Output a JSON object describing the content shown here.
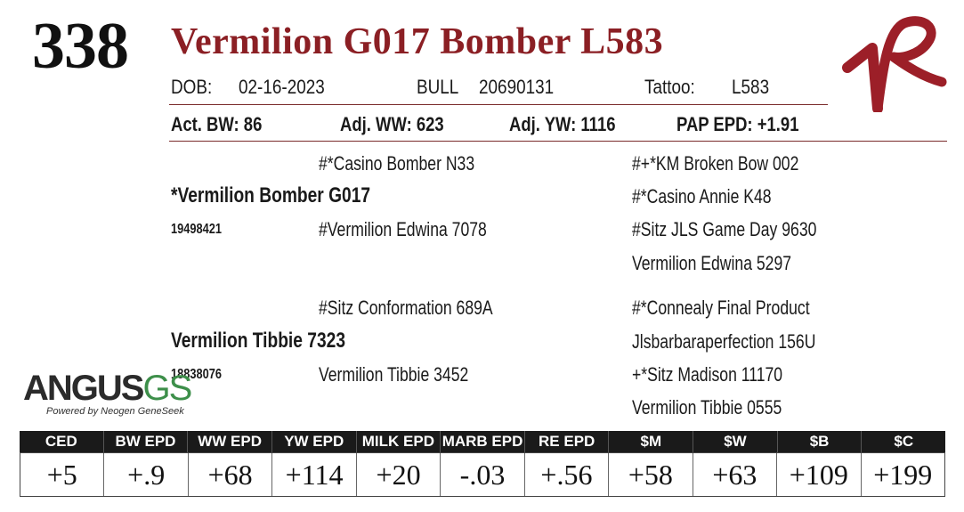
{
  "lot_number": "338",
  "name": "Vermilion G017 Bomber L583",
  "info": {
    "dob_label": "DOB:",
    "dob": "02-16-2023",
    "sex_label": "BULL",
    "reg_number": "20690131",
    "tattoo_label": "Tattoo:",
    "tattoo": "L583"
  },
  "performance": {
    "act_bw": "Act. BW: 86",
    "adj_ww": "Adj. WW: 623",
    "adj_yw": "Adj. YW: 1116",
    "pap_epd": "PAP EPD: +1.91"
  },
  "pedigree": {
    "sire": {
      "name": "*Vermilion Bomber G017",
      "reg": "19498421",
      "sire": "#*Casino Bomber N33",
      "dam": "#Vermilion Edwina 7078",
      "sire_sire": "#+*KM Broken Bow 002",
      "sire_dam": "#*Casino Annie K48",
      "dam_sire": "#Sitz JLS Game Day 9630",
      "dam_dam": "Vermilion Edwina 5297"
    },
    "dam": {
      "name": "Vermilion Tibbie 7323",
      "reg": "18838076",
      "sire": "#Sitz Conformation 689A",
      "dam": "Vermilion Tibbie 3452",
      "sire_sire": "#*Connealy Final Product",
      "sire_dam": "Jlsbarbaraperfection 156U",
      "dam_sire": "+*Sitz Madison 11170",
      "dam_dam": "Vermilion Tibbie 0555"
    }
  },
  "logo": {
    "angus": "ANGUS",
    "gs": "GS",
    "tagline": "Powered by Neogen GeneSeek",
    "brand_mark": "VR"
  },
  "epd_headers": [
    "CED",
    "BW EPD",
    "WW EPD",
    "YW EPD",
    "MILK EPD",
    "MARB EPD",
    "RE EPD",
    "$M",
    "$W",
    "$B",
    "$C"
  ],
  "epd_values": [
    "+5",
    "+.9",
    "+68",
    "+114",
    "+20",
    "-.03",
    "+.56",
    "+58",
    "+63",
    "+109",
    "+199"
  ],
  "colors": {
    "title": "#8b1f24",
    "brand": "#9c1f28",
    "gs_green": "#3d8f4a"
  }
}
